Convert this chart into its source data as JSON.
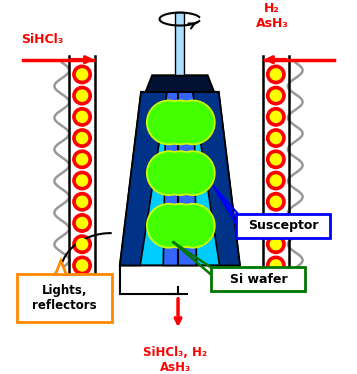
{
  "bg_color": "#ffffff",
  "susceptor_cyan": "#00ccff",
  "susceptor_blue": "#3366ff",
  "susceptor_dark_top": "#001133",
  "wafer_green": "#44ff00",
  "wafer_yellow_border": "#ccff00",
  "shaft_color": "#aaddff",
  "lamp_outer": "#ff0000",
  "lamp_inner": "#ffff00",
  "reflector_color": "#999999",
  "arrow_color": "#ff0000",
  "label_sihcl3": "SiHCl₃",
  "label_h2ash3": "H₂\nAsH₃",
  "label_bottom": "SiHCl₃, H₂\nAsH₃",
  "label_susceptor": "Susceptor",
  "label_siwafer": "Si wafer",
  "label_lights": "Lights,\nreflectors",
  "orange_color": "#ff8800",
  "blue_color": "#0000ff",
  "green_color": "#007700"
}
